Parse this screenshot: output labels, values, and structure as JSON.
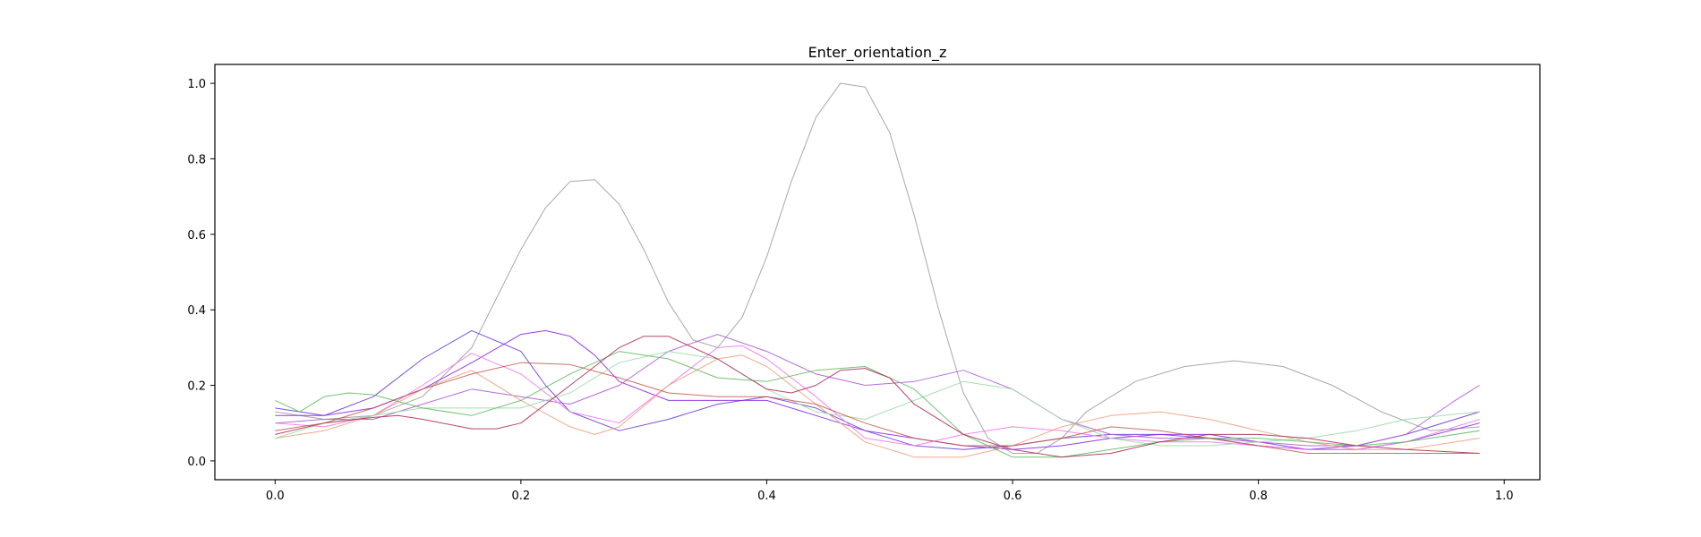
{
  "chart_data": {
    "type": "line",
    "title": "Enter_orientation_z",
    "xlabel": "",
    "ylabel": "",
    "xlim": [
      -0.049,
      1.029
    ],
    "ylim": [
      -0.05,
      1.05
    ],
    "xticks": [
      0.0,
      0.2,
      0.4,
      0.6,
      0.8,
      1.0
    ],
    "xtick_labels": [
      "0.0",
      "0.2",
      "0.4",
      "0.6",
      "0.8",
      "1.0"
    ],
    "yticks": [
      0.0,
      0.2,
      0.4,
      0.6,
      0.8,
      1.0
    ],
    "ytick_labels": [
      "0.0",
      "0.2",
      "0.4",
      "0.6",
      "0.8",
      "1.0"
    ],
    "grid": false,
    "legend": "none",
    "series": [
      {
        "color": "#999999",
        "opacity": 0.85,
        "x": [
          0.0,
          0.04,
          0.08,
          0.12,
          0.16,
          0.18,
          0.2,
          0.22,
          0.24,
          0.26,
          0.28,
          0.3,
          0.32,
          0.34,
          0.36,
          0.38,
          0.4,
          0.42,
          0.44,
          0.46,
          0.48,
          0.5,
          0.52,
          0.54,
          0.56,
          0.58,
          0.6,
          0.62,
          0.64,
          0.66,
          0.7,
          0.74,
          0.78,
          0.82,
          0.86,
          0.9,
          0.94,
          0.98
        ],
        "y": [
          0.13,
          0.11,
          0.12,
          0.17,
          0.3,
          0.43,
          0.56,
          0.67,
          0.74,
          0.745,
          0.68,
          0.56,
          0.42,
          0.32,
          0.3,
          0.38,
          0.54,
          0.74,
          0.91,
          1.0,
          0.99,
          0.87,
          0.65,
          0.4,
          0.18,
          0.06,
          0.02,
          0.02,
          0.06,
          0.13,
          0.21,
          0.25,
          0.265,
          0.25,
          0.2,
          0.13,
          0.08,
          0.09
        ]
      },
      {
        "color": "#6a3fd8",
        "opacity": 0.9,
        "x": [
          0.0,
          0.04,
          0.08,
          0.12,
          0.16,
          0.2,
          0.22,
          0.24,
          0.28,
          0.32,
          0.36,
          0.4,
          0.44,
          0.48,
          0.52,
          0.56,
          0.6,
          0.64,
          0.68,
          0.72,
          0.76,
          0.8,
          0.84,
          0.88,
          0.92,
          0.98
        ],
        "y": [
          0.14,
          0.12,
          0.17,
          0.27,
          0.345,
          0.29,
          0.2,
          0.13,
          0.08,
          0.11,
          0.15,
          0.17,
          0.14,
          0.08,
          0.04,
          0.03,
          0.04,
          0.06,
          0.07,
          0.07,
          0.06,
          0.04,
          0.03,
          0.04,
          0.07,
          0.13
        ]
      },
      {
        "color": "#8a2be2",
        "opacity": 0.9,
        "x": [
          0.0,
          0.04,
          0.08,
          0.12,
          0.16,
          0.2,
          0.22,
          0.24,
          0.26,
          0.28,
          0.32,
          0.36,
          0.4,
          0.44,
          0.48,
          0.52,
          0.56,
          0.6,
          0.64,
          0.68,
          0.72,
          0.76,
          0.8,
          0.84,
          0.88,
          0.92,
          0.98
        ],
        "y": [
          0.12,
          0.12,
          0.14,
          0.19,
          0.26,
          0.335,
          0.345,
          0.33,
          0.28,
          0.21,
          0.16,
          0.16,
          0.16,
          0.12,
          0.08,
          0.06,
          0.04,
          0.03,
          0.04,
          0.06,
          0.07,
          0.07,
          0.05,
          0.03,
          0.03,
          0.05,
          0.1
        ]
      },
      {
        "color": "#b05cd8",
        "opacity": 0.9,
        "x": [
          0.0,
          0.04,
          0.08,
          0.12,
          0.16,
          0.2,
          0.24,
          0.28,
          0.32,
          0.36,
          0.4,
          0.44,
          0.48,
          0.52,
          0.56,
          0.6,
          0.64,
          0.68,
          0.72,
          0.76,
          0.8,
          0.84,
          0.88,
          0.92,
          0.96,
          0.98
        ],
        "y": [
          0.1,
          0.11,
          0.11,
          0.15,
          0.19,
          0.17,
          0.15,
          0.2,
          0.29,
          0.335,
          0.29,
          0.23,
          0.2,
          0.21,
          0.24,
          0.19,
          0.11,
          0.07,
          0.06,
          0.06,
          0.05,
          0.04,
          0.04,
          0.07,
          0.16,
          0.2
        ]
      },
      {
        "color": "#f079f0",
        "opacity": 0.9,
        "x": [
          0.0,
          0.04,
          0.08,
          0.12,
          0.16,
          0.2,
          0.24,
          0.28,
          0.32,
          0.36,
          0.38,
          0.4,
          0.44,
          0.48,
          0.52,
          0.56,
          0.6,
          0.64,
          0.68,
          0.72,
          0.76,
          0.8,
          0.84,
          0.88,
          0.92,
          0.98
        ],
        "y": [
          0.1,
          0.09,
          0.12,
          0.2,
          0.285,
          0.23,
          0.13,
          0.1,
          0.2,
          0.3,
          0.305,
          0.27,
          0.17,
          0.06,
          0.04,
          0.07,
          0.09,
          0.08,
          0.06,
          0.05,
          0.05,
          0.04,
          0.03,
          0.03,
          0.05,
          0.11
        ]
      },
      {
        "color": "#f0a080",
        "opacity": 0.9,
        "x": [
          0.0,
          0.04,
          0.08,
          0.12,
          0.16,
          0.2,
          0.24,
          0.26,
          0.28,
          0.32,
          0.36,
          0.38,
          0.4,
          0.44,
          0.48,
          0.52,
          0.56,
          0.6,
          0.64,
          0.68,
          0.72,
          0.76,
          0.8,
          0.84,
          0.88,
          0.92,
          0.98
        ],
        "y": [
          0.06,
          0.08,
          0.12,
          0.19,
          0.24,
          0.16,
          0.09,
          0.07,
          0.09,
          0.2,
          0.27,
          0.28,
          0.25,
          0.15,
          0.05,
          0.01,
          0.01,
          0.04,
          0.09,
          0.12,
          0.13,
          0.11,
          0.08,
          0.05,
          0.03,
          0.03,
          0.06
        ]
      },
      {
        "color": "#9bdca8",
        "opacity": 0.9,
        "x": [
          0.0,
          0.04,
          0.08,
          0.12,
          0.16,
          0.2,
          0.24,
          0.28,
          0.32,
          0.36,
          0.4,
          0.44,
          0.48,
          0.52,
          0.56,
          0.6,
          0.64,
          0.68,
          0.72,
          0.76,
          0.8,
          0.84,
          0.88,
          0.92,
          0.98
        ],
        "y": [
          0.06,
          0.1,
          0.12,
          0.14,
          0.14,
          0.14,
          0.18,
          0.26,
          0.29,
          0.27,
          0.19,
          0.13,
          0.11,
          0.16,
          0.21,
          0.19,
          0.11,
          0.06,
          0.04,
          0.04,
          0.05,
          0.06,
          0.08,
          0.11,
          0.13
        ]
      },
      {
        "color": "#5cb85c",
        "opacity": 0.85,
        "x": [
          0.0,
          0.02,
          0.04,
          0.06,
          0.08,
          0.12,
          0.16,
          0.2,
          0.24,
          0.28,
          0.32,
          0.36,
          0.4,
          0.44,
          0.48,
          0.52,
          0.56,
          0.6,
          0.64,
          0.68,
          0.72,
          0.76,
          0.8,
          0.84,
          0.88,
          0.92,
          0.98
        ],
        "y": [
          0.16,
          0.13,
          0.17,
          0.18,
          0.175,
          0.14,
          0.12,
          0.16,
          0.23,
          0.29,
          0.27,
          0.22,
          0.21,
          0.24,
          0.25,
          0.19,
          0.07,
          0.01,
          0.01,
          0.03,
          0.05,
          0.06,
          0.06,
          0.05,
          0.04,
          0.05,
          0.08
        ]
      },
      {
        "color": "#b0305c",
        "opacity": 0.9,
        "x": [
          0.0,
          0.04,
          0.08,
          0.1,
          0.12,
          0.16,
          0.18,
          0.2,
          0.24,
          0.28,
          0.3,
          0.32,
          0.36,
          0.4,
          0.42,
          0.44,
          0.46,
          0.48,
          0.5,
          0.52,
          0.56,
          0.6,
          0.64,
          0.68,
          0.72,
          0.76,
          0.8,
          0.84,
          0.88,
          0.92,
          0.98
        ],
        "y": [
          0.07,
          0.1,
          0.115,
          0.12,
          0.11,
          0.085,
          0.085,
          0.1,
          0.2,
          0.3,
          0.33,
          0.33,
          0.27,
          0.19,
          0.18,
          0.2,
          0.24,
          0.245,
          0.22,
          0.15,
          0.07,
          0.03,
          0.01,
          0.02,
          0.05,
          0.07,
          0.07,
          0.06,
          0.04,
          0.03,
          0.02
        ]
      },
      {
        "color": "#c04c40",
        "opacity": 0.8,
        "x": [
          0.0,
          0.04,
          0.08,
          0.12,
          0.16,
          0.2,
          0.24,
          0.28,
          0.32,
          0.36,
          0.4,
          0.44,
          0.48,
          0.52,
          0.56,
          0.6,
          0.64,
          0.68,
          0.72,
          0.76,
          0.8,
          0.84,
          0.88,
          0.92,
          0.96,
          0.98
        ],
        "y": [
          0.08,
          0.1,
          0.14,
          0.19,
          0.23,
          0.26,
          0.255,
          0.22,
          0.18,
          0.17,
          0.17,
          0.15,
          0.1,
          0.06,
          0.04,
          0.04,
          0.06,
          0.09,
          0.08,
          0.06,
          0.04,
          0.02,
          0.02,
          0.02,
          0.02,
          0.02
        ]
      }
    ]
  }
}
